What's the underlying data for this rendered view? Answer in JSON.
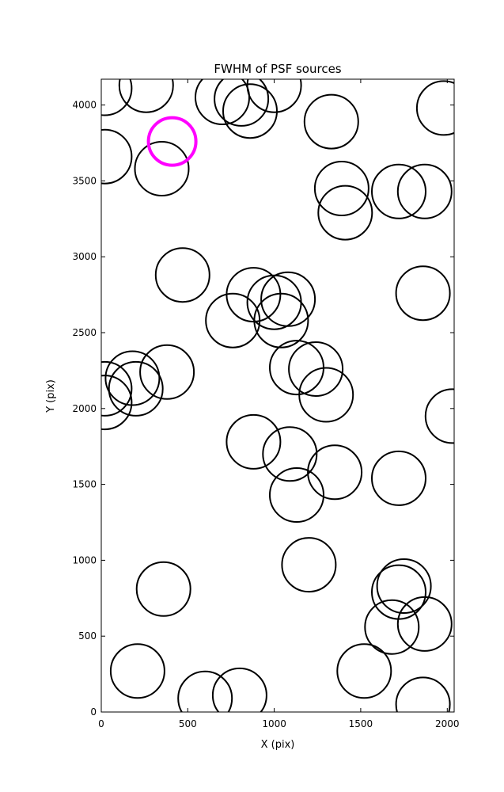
{
  "chart_data": {
    "type": "scatter",
    "title": "FWHM of PSF sources",
    "xlabel": "X (pix)",
    "ylabel": "Y (pix)",
    "xlim": [
      0,
      2040
    ],
    "ylim": [
      0,
      4170
    ],
    "xticks": [
      0,
      500,
      1000,
      1500,
      2000
    ],
    "yticks": [
      0,
      500,
      1000,
      1500,
      2000,
      2500,
      3000,
      3500,
      4000
    ],
    "grid": false,
    "marker": "open circle",
    "colors": {
      "default": "#000000",
      "highlight": "#ff00ff"
    },
    "highlight_index": 0,
    "points": [
      {
        "x": 410,
        "y": 3760
      },
      {
        "x": 20,
        "y": 4110
      },
      {
        "x": 260,
        "y": 4130
      },
      {
        "x": 700,
        "y": 4050
      },
      {
        "x": 810,
        "y": 4040
      },
      {
        "x": 860,
        "y": 3960
      },
      {
        "x": 1000,
        "y": 4130
      },
      {
        "x": 1330,
        "y": 3890
      },
      {
        "x": 1980,
        "y": 3980
      },
      {
        "x": 20,
        "y": 3660
      },
      {
        "x": 350,
        "y": 3580
      },
      {
        "x": 1390,
        "y": 3450
      },
      {
        "x": 1410,
        "y": 3290
      },
      {
        "x": 1720,
        "y": 3430
      },
      {
        "x": 1870,
        "y": 3430
      },
      {
        "x": 470,
        "y": 2880
      },
      {
        "x": 880,
        "y": 2750
      },
      {
        "x": 760,
        "y": 2580
      },
      {
        "x": 1000,
        "y": 2700
      },
      {
        "x": 1080,
        "y": 2720
      },
      {
        "x": 1040,
        "y": 2580
      },
      {
        "x": 1860,
        "y": 2760
      },
      {
        "x": 180,
        "y": 2200
      },
      {
        "x": 200,
        "y": 2130
      },
      {
        "x": 20,
        "y": 2130
      },
      {
        "x": 20,
        "y": 2040
      },
      {
        "x": 380,
        "y": 2240
      },
      {
        "x": 1130,
        "y": 2270
      },
      {
        "x": 1240,
        "y": 2260
      },
      {
        "x": 1300,
        "y": 2090
      },
      {
        "x": 2030,
        "y": 1950
      },
      {
        "x": 880,
        "y": 1780
      },
      {
        "x": 1090,
        "y": 1700
      },
      {
        "x": 1350,
        "y": 1580
      },
      {
        "x": 1130,
        "y": 1430
      },
      {
        "x": 1720,
        "y": 1540
      },
      {
        "x": 1200,
        "y": 970
      },
      {
        "x": 360,
        "y": 810
      },
      {
        "x": 1750,
        "y": 830
      },
      {
        "x": 1720,
        "y": 790
      },
      {
        "x": 1680,
        "y": 560
      },
      {
        "x": 1870,
        "y": 580
      },
      {
        "x": 210,
        "y": 270
      },
      {
        "x": 1520,
        "y": 270
      },
      {
        "x": 600,
        "y": 90
      },
      {
        "x": 800,
        "y": 110
      },
      {
        "x": 1860,
        "y": 50
      }
    ]
  }
}
